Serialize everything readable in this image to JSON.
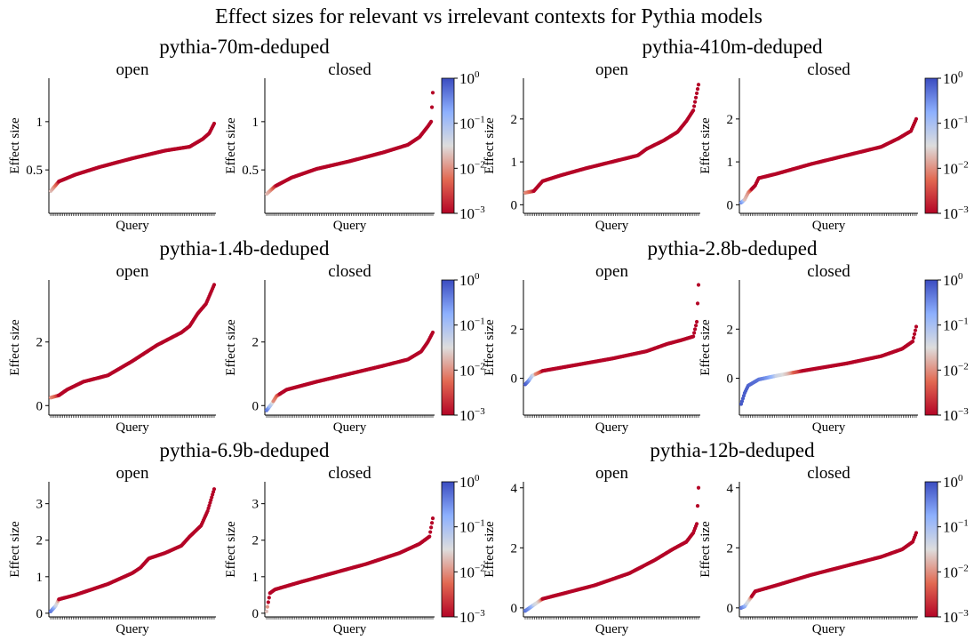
{
  "figure": {
    "title": "Effect sizes for relevant vs irrelevant contexts for Pythia models"
  },
  "colorbar": {
    "tick_labels": [
      "10^0",
      "10^-1",
      "10^-2",
      "10^-3"
    ],
    "values": [
      1,
      0.1,
      0.01,
      0.001
    ],
    "scale": "log",
    "colormap": "coolwarm",
    "colors": {
      "low": "#b40426",
      "mid": "#dddddd",
      "high": "#3b4cc0"
    }
  },
  "chart_data": [
    {
      "model": "pythia-70m-deduped",
      "type": "scatter",
      "n_points": 200,
      "panels": [
        {
          "subtitle": "open",
          "xlabel": "Query",
          "ylabel": "Effect size",
          "ylim": [
            0.05,
            1.45
          ],
          "yticks": [
            0.5,
            1.0
          ],
          "curve": [
            [
              0,
              0.28
            ],
            [
              0.03,
              0.34
            ],
            [
              0.05,
              0.38
            ],
            [
              0.15,
              0.45
            ],
            [
              0.3,
              0.53
            ],
            [
              0.5,
              0.62
            ],
            [
              0.7,
              0.7
            ],
            [
              0.85,
              0.74
            ],
            [
              0.93,
              0.82
            ],
            [
              0.97,
              0.88
            ],
            [
              1,
              0.98
            ]
          ],
          "pvalue_head": [
            [
              0,
              0.02
            ],
            [
              0.03,
              0.006
            ],
            [
              0.05,
              0.001
            ]
          ]
        },
        {
          "subtitle": "closed",
          "xlabel": "Query",
          "ylabel": "Effect size",
          "ylim": [
            0.05,
            1.45
          ],
          "yticks": [
            0.5,
            1.0
          ],
          "curve": [
            [
              0,
              0.25
            ],
            [
              0.05,
              0.33
            ],
            [
              0.15,
              0.42
            ],
            [
              0.3,
              0.51
            ],
            [
              0.5,
              0.59
            ],
            [
              0.7,
              0.68
            ],
            [
              0.85,
              0.76
            ],
            [
              0.92,
              0.84
            ],
            [
              0.97,
              0.95
            ],
            [
              0.99,
              1.0
            ],
            [
              1,
              1.3
            ]
          ],
          "pvalue_head": [
            [
              0,
              0.02
            ],
            [
              0.04,
              0.004
            ],
            [
              0.06,
              0.001
            ]
          ]
        }
      ]
    },
    {
      "model": "pythia-410m-deduped",
      "type": "scatter",
      "n_points": 200,
      "panels": [
        {
          "subtitle": "open",
          "xlabel": "Query",
          "ylabel": "Effect size",
          "ylim": [
            -0.2,
            2.95
          ],
          "yticks": [
            0,
            1,
            2
          ],
          "curve": [
            [
              0,
              0.28
            ],
            [
              0.05,
              0.32
            ],
            [
              0.1,
              0.55
            ],
            [
              0.2,
              0.68
            ],
            [
              0.35,
              0.85
            ],
            [
              0.5,
              1.0
            ],
            [
              0.65,
              1.15
            ],
            [
              0.7,
              1.3
            ],
            [
              0.8,
              1.5
            ],
            [
              0.88,
              1.7
            ],
            [
              0.93,
              1.95
            ],
            [
              0.97,
              2.2
            ],
            [
              1,
              2.8
            ]
          ],
          "pvalue_head": [
            [
              0,
              0.01
            ],
            [
              0.05,
              0.001
            ]
          ]
        },
        {
          "subtitle": "closed",
          "xlabel": "Query",
          "ylabel": "Effect size",
          "ylim": [
            -0.2,
            2.95
          ],
          "yticks": [
            0,
            1,
            2
          ],
          "curve": [
            [
              0,
              0.05
            ],
            [
              0.02,
              0.12
            ],
            [
              0.04,
              0.28
            ],
            [
              0.08,
              0.45
            ],
            [
              0.1,
              0.62
            ],
            [
              0.2,
              0.72
            ],
            [
              0.4,
              0.95
            ],
            [
              0.6,
              1.15
            ],
            [
              0.8,
              1.35
            ],
            [
              0.9,
              1.55
            ],
            [
              0.97,
              1.72
            ],
            [
              1,
              2.0
            ]
          ],
          "pvalue_head": [
            [
              0,
              0.3
            ],
            [
              0.02,
              0.02
            ],
            [
              0.06,
              0.001
            ]
          ]
        }
      ]
    },
    {
      "model": "pythia-1.4b-deduped",
      "type": "scatter",
      "n_points": 200,
      "panels": [
        {
          "subtitle": "open",
          "xlabel": "Query",
          "ylabel": "Effect size",
          "ylim": [
            -0.3,
            3.95
          ],
          "yticks": [
            0,
            2
          ],
          "curve": [
            [
              0,
              0.25
            ],
            [
              0.05,
              0.32
            ],
            [
              0.1,
              0.5
            ],
            [
              0.2,
              0.75
            ],
            [
              0.35,
              0.95
            ],
            [
              0.5,
              1.4
            ],
            [
              0.65,
              1.9
            ],
            [
              0.8,
              2.3
            ],
            [
              0.85,
              2.5
            ],
            [
              0.9,
              2.9
            ],
            [
              0.95,
              3.2
            ],
            [
              1,
              3.8
            ]
          ],
          "pvalue_head": [
            [
              0,
              0.01
            ],
            [
              0.05,
              0.001
            ]
          ]
        },
        {
          "subtitle": "closed",
          "xlabel": "Query",
          "ylabel": "Effect size",
          "ylim": [
            -0.3,
            3.95
          ],
          "yticks": [
            0,
            2
          ],
          "curve": [
            [
              0,
              -0.15
            ],
            [
              0.03,
              0.05
            ],
            [
              0.06,
              0.3
            ],
            [
              0.12,
              0.5
            ],
            [
              0.3,
              0.75
            ],
            [
              0.5,
              1.0
            ],
            [
              0.7,
              1.25
            ],
            [
              0.85,
              1.45
            ],
            [
              0.93,
              1.7
            ],
            [
              0.97,
              2.0
            ],
            [
              1,
              2.3
            ]
          ],
          "pvalue_head": [
            [
              0,
              0.5
            ],
            [
              0.02,
              0.1
            ],
            [
              0.04,
              0.01
            ],
            [
              0.08,
              0.001
            ]
          ]
        }
      ]
    },
    {
      "model": "pythia-2.8b-deduped",
      "type": "scatter",
      "n_points": 200,
      "panels": [
        {
          "subtitle": "open",
          "xlabel": "Query",
          "ylabel": "Effect size",
          "ylim": [
            -1.5,
            4.0
          ],
          "yticks": [
            0,
            2
          ],
          "curve": [
            [
              0,
              -0.25
            ],
            [
              0.02,
              -0.1
            ],
            [
              0.04,
              0.1
            ],
            [
              0.07,
              0.2
            ],
            [
              0.1,
              0.3
            ],
            [
              0.3,
              0.55
            ],
            [
              0.5,
              0.8
            ],
            [
              0.7,
              1.1
            ],
            [
              0.82,
              1.4
            ],
            [
              0.9,
              1.55
            ],
            [
              0.97,
              1.7
            ],
            [
              0.99,
              2.3
            ],
            [
              1,
              3.8
            ]
          ],
          "pvalue_head": [
            [
              0,
              0.8
            ],
            [
              0.03,
              0.1
            ],
            [
              0.06,
              0.01
            ],
            [
              0.1,
              0.001
            ]
          ]
        },
        {
          "subtitle": "closed",
          "xlabel": "Query",
          "ylabel": "Effect size",
          "ylim": [
            -1.5,
            4.0
          ],
          "yticks": [
            0,
            2
          ],
          "curve": [
            [
              0,
              -1.05
            ],
            [
              0.02,
              -0.6
            ],
            [
              0.04,
              -0.3
            ],
            [
              0.1,
              -0.05
            ],
            [
              0.2,
              0.1
            ],
            [
              0.35,
              0.3
            ],
            [
              0.6,
              0.6
            ],
            [
              0.8,
              0.9
            ],
            [
              0.92,
              1.2
            ],
            [
              0.98,
              1.5
            ],
            [
              1,
              2.1
            ]
          ],
          "pvalue_head": [
            [
              0,
              0.8
            ],
            [
              0.1,
              0.5
            ],
            [
              0.2,
              0.05
            ],
            [
              0.3,
              0.005
            ],
            [
              0.35,
              0.001
            ]
          ]
        }
      ]
    },
    {
      "model": "pythia-6.9b-deduped",
      "type": "scatter",
      "n_points": 200,
      "panels": [
        {
          "subtitle": "open",
          "xlabel": "Query",
          "ylabel": "Effect size",
          "ylim": [
            -0.1,
            3.6
          ],
          "yticks": [
            0,
            1,
            2,
            3
          ],
          "curve": [
            [
              0,
              0.05
            ],
            [
              0.03,
              0.2
            ],
            [
              0.05,
              0.38
            ],
            [
              0.15,
              0.5
            ],
            [
              0.35,
              0.8
            ],
            [
              0.5,
              1.1
            ],
            [
              0.55,
              1.25
            ],
            [
              0.6,
              1.5
            ],
            [
              0.7,
              1.65
            ],
            [
              0.8,
              1.85
            ],
            [
              0.85,
              2.1
            ],
            [
              0.92,
              2.4
            ],
            [
              0.96,
              2.8
            ],
            [
              1,
              3.4
            ]
          ],
          "pvalue_head": [
            [
              0,
              0.5
            ],
            [
              0.03,
              0.05
            ],
            [
              0.05,
              0.001
            ]
          ]
        },
        {
          "subtitle": "closed",
          "xlabel": "Query",
          "ylabel": "Effect size",
          "ylim": [
            -0.1,
            3.6
          ],
          "yticks": [
            0,
            1,
            2,
            3
          ],
          "curve": [
            [
              0,
              0.05
            ],
            [
              0.01,
              0.3
            ],
            [
              0.02,
              0.55
            ],
            [
              0.05,
              0.65
            ],
            [
              0.2,
              0.85
            ],
            [
              0.4,
              1.1
            ],
            [
              0.6,
              1.35
            ],
            [
              0.8,
              1.65
            ],
            [
              0.92,
              1.9
            ],
            [
              0.98,
              2.1
            ],
            [
              1,
              2.6
            ]
          ],
          "pvalue_head": [
            [
              0,
              0.02
            ],
            [
              0.01,
              0.001
            ]
          ]
        }
      ]
    },
    {
      "model": "pythia-12b-deduped",
      "type": "scatter",
      "n_points": 200,
      "panels": [
        {
          "subtitle": "open",
          "xlabel": "Query",
          "ylabel": "Effect size",
          "ylim": [
            -0.3,
            4.2
          ],
          "yticks": [
            0,
            2,
            4
          ],
          "curve": [
            [
              0,
              -0.1
            ],
            [
              0.05,
              0.1
            ],
            [
              0.1,
              0.3
            ],
            [
              0.2,
              0.45
            ],
            [
              0.4,
              0.75
            ],
            [
              0.6,
              1.15
            ],
            [
              0.75,
              1.6
            ],
            [
              0.85,
              1.95
            ],
            [
              0.93,
              2.2
            ],
            [
              0.97,
              2.5
            ],
            [
              0.99,
              2.8
            ],
            [
              1,
              4.0
            ]
          ],
          "pvalue_head": [
            [
              0,
              0.5
            ],
            [
              0.05,
              0.05
            ],
            [
              0.1,
              0.001
            ]
          ]
        },
        {
          "subtitle": "closed",
          "xlabel": "Query",
          "ylabel": "Effect size",
          "ylim": [
            -0.3,
            4.2
          ],
          "yticks": [
            0,
            2,
            4
          ],
          "curve": [
            [
              0,
              0.0
            ],
            [
              0.02,
              0.05
            ],
            [
              0.05,
              0.3
            ],
            [
              0.08,
              0.55
            ],
            [
              0.2,
              0.75
            ],
            [
              0.4,
              1.1
            ],
            [
              0.6,
              1.4
            ],
            [
              0.8,
              1.7
            ],
            [
              0.92,
              1.95
            ],
            [
              0.98,
              2.2
            ],
            [
              1,
              2.5
            ]
          ],
          "pvalue_head": [
            [
              0,
              0.5
            ],
            [
              0.03,
              0.05
            ],
            [
              0.06,
              0.001
            ]
          ]
        }
      ]
    }
  ]
}
